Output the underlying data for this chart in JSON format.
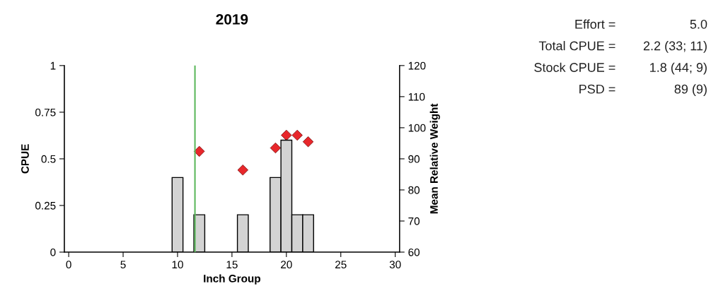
{
  "chart_data": {
    "type": "bar",
    "title": "2019",
    "xlabel": "Inch Group",
    "ylabel": "CPUE",
    "y2label": "Mean Relative Weight",
    "series": [
      {
        "color": "#d3d3d3",
        "x": [
          10,
          12,
          16,
          19,
          20,
          21,
          22
        ],
        "values": [
          0.4,
          0.2,
          0.2,
          0.4,
          0.6,
          0.2,
          0.2
        ]
      },
      {
        "type": "scatter",
        "axis": "y2",
        "color": "#e8272b",
        "marker": "diamond",
        "x": [
          12,
          16,
          19,
          20,
          21,
          22
        ],
        "values": [
          92.4,
          86.4,
          93.5,
          97.6,
          97.6,
          95.5
        ]
      }
    ],
    "xlim": [
      -0.4,
      30.4
    ],
    "xticks": [
      0,
      5,
      10,
      15,
      20,
      25,
      30
    ],
    "ylim": [
      0,
      1
    ],
    "yticks": [
      0,
      0.25,
      0.5,
      0.75,
      1
    ],
    "y2lim": [
      60,
      120
    ],
    "y2ticks": [
      60,
      70,
      80,
      90,
      100,
      110,
      120
    ],
    "ref_lines": [
      {
        "axis": "x",
        "value": 11.6,
        "color": "#5cb85c"
      }
    ],
    "grid": false,
    "legend": false,
    "annotations": [
      "Effort = 5.0",
      "Total CPUE = 2.2 (33; 11)",
      "Stock CPUE = 1.8 (44; 9)",
      "PSD = 89 (9)"
    ]
  }
}
